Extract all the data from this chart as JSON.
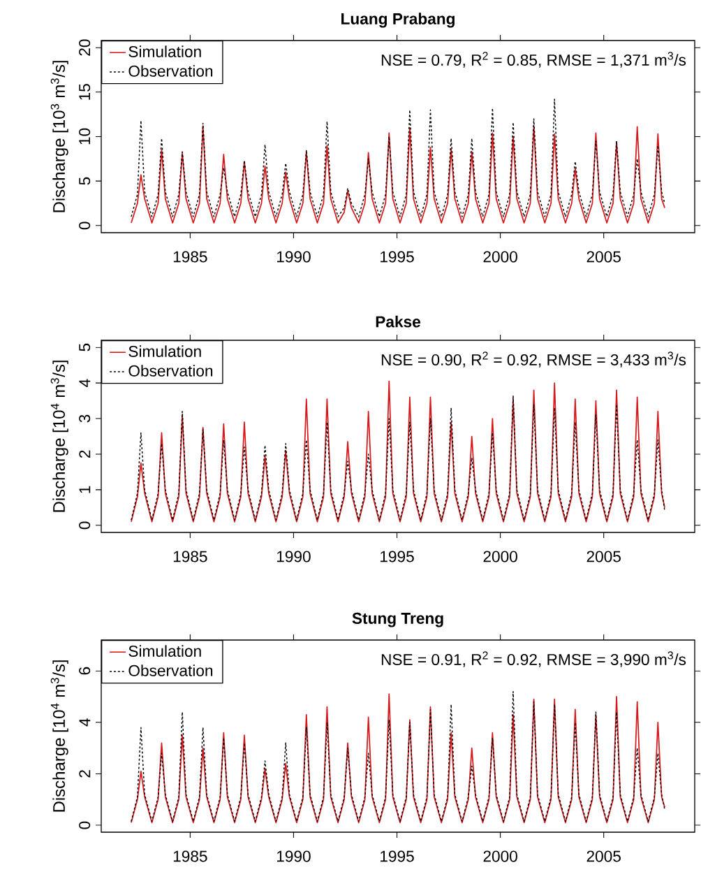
{
  "chart_data": [
    {
      "type": "line",
      "title": "Luang Prabang",
      "ylabel": "Discharge [10$^{3}$ m$^{3}$/s]",
      "annotations": [
        "NSE = 0.79, R$^{2}$ = 0.85, RMSE = 1,371 m$^{3}$/s"
      ],
      "xlim": [
        1980.7,
        2009.4
      ],
      "xticks": [
        1985,
        1990,
        1995,
        2000,
        2005
      ],
      "ylim": [
        -0.8,
        20.8
      ],
      "yticks": [
        0,
        5,
        10,
        15,
        20
      ],
      "grid": false,
      "legend": "top left",
      "x": [
        1982.15,
        1982.45,
        1982.62,
        1982.8,
        1983.15,
        1983.45,
        1983.62,
        1983.8,
        1984.15,
        1984.45,
        1984.62,
        1984.8,
        1985.15,
        1985.45,
        1985.62,
        1985.8,
        1986.15,
        1986.45,
        1986.62,
        1986.8,
        1987.15,
        1987.45,
        1987.62,
        1987.8,
        1988.15,
        1988.45,
        1988.62,
        1988.8,
        1989.15,
        1989.45,
        1989.62,
        1989.8,
        1990.15,
        1990.45,
        1990.62,
        1990.8,
        1991.15,
        1991.45,
        1991.62,
        1991.8,
        1992.15,
        1992.45,
        1992.62,
        1992.8,
        1993.15,
        1993.45,
        1993.62,
        1993.8,
        1994.15,
        1994.45,
        1994.62,
        1994.8,
        1995.15,
        1995.45,
        1995.62,
        1995.8,
        1996.15,
        1996.45,
        1996.62,
        1996.8,
        1997.15,
        1997.45,
        1997.62,
        1997.8,
        1998.15,
        1998.45,
        1998.62,
        1998.8,
        1999.15,
        1999.45,
        1999.62,
        1999.8,
        2000.15,
        2000.45,
        2000.62,
        2000.8,
        2001.15,
        2001.45,
        2001.62,
        2001.8,
        2002.15,
        2002.45,
        2002.62,
        2002.8,
        2003.15,
        2003.45,
        2003.62,
        2003.8,
        2004.15,
        2004.45,
        2004.62,
        2004.8,
        2005.15,
        2005.45,
        2005.62,
        2005.8,
        2006.15,
        2006.45,
        2006.62,
        2006.8,
        2007.15,
        2007.45,
        2007.62,
        2007.8,
        2007.95
      ],
      "series": [
        {
          "name": "Simulation",
          "color": "#d7191c",
          "line_style": "solid",
          "values": [
            0.3,
            2.5,
            5.7,
            3.0,
            0.3,
            2.5,
            8.5,
            3.0,
            0.3,
            2.5,
            8.2,
            3.0,
            0.3,
            2.5,
            11.2,
            3.0,
            0.3,
            2.5,
            8.0,
            3.0,
            0.3,
            2.5,
            7.2,
            3.0,
            0.3,
            2.5,
            6.7,
            3.0,
            0.3,
            2.5,
            6.0,
            3.0,
            0.3,
            2.5,
            8.3,
            3.0,
            0.3,
            2.5,
            9.0,
            3.0,
            0.3,
            1.5,
            3.9,
            2.0,
            0.3,
            2.5,
            8.2,
            3.0,
            0.3,
            2.5,
            10.4,
            3.0,
            0.3,
            2.5,
            11.0,
            3.0,
            0.3,
            2.5,
            8.8,
            3.0,
            0.3,
            2.5,
            8.6,
            3.0,
            0.3,
            2.5,
            8.3,
            3.0,
            0.3,
            2.5,
            10.4,
            3.0,
            0.3,
            2.5,
            10.0,
            3.0,
            0.3,
            2.5,
            11.2,
            3.0,
            0.3,
            2.5,
            10.3,
            3.0,
            0.3,
            2.5,
            6.4,
            3.0,
            0.3,
            2.5,
            10.4,
            3.0,
            0.3,
            2.5,
            9.4,
            3.0,
            0.3,
            2.5,
            11.1,
            3.0,
            0.3,
            2.5,
            10.3,
            3.0,
            2.0
          ]
        },
        {
          "name": "Observation",
          "color": "#000000",
          "line_style": "dotted",
          "values": [
            1.0,
            3.5,
            11.8,
            3.8,
            1.0,
            3.5,
            9.8,
            3.8,
            1.0,
            3.5,
            8.3,
            3.8,
            1.0,
            3.5,
            11.5,
            3.8,
            1.0,
            3.5,
            6.5,
            3.8,
            1.0,
            3.5,
            7.3,
            3.8,
            1.0,
            3.5,
            9.1,
            3.8,
            1.0,
            3.5,
            7.0,
            3.8,
            1.0,
            3.5,
            8.5,
            3.8,
            1.0,
            3.5,
            11.7,
            3.8,
            1.0,
            2.0,
            4.2,
            2.5,
            1.0,
            3.5,
            7.5,
            3.8,
            1.0,
            3.5,
            10.0,
            3.8,
            1.0,
            3.5,
            13.0,
            3.8,
            1.0,
            3.5,
            13.0,
            3.8,
            1.0,
            3.5,
            9.8,
            3.8,
            1.0,
            3.5,
            9.8,
            3.8,
            1.0,
            3.5,
            13.2,
            3.8,
            1.0,
            3.5,
            11.6,
            3.8,
            1.0,
            3.5,
            12.0,
            3.8,
            1.0,
            3.5,
            14.2,
            3.8,
            1.0,
            3.5,
            7.2,
            3.8,
            1.0,
            3.5,
            9.5,
            3.8,
            1.0,
            3.5,
            9.5,
            3.8,
            1.0,
            3.5,
            7.5,
            3.8,
            1.0,
            3.5,
            9.0,
            3.8,
            2.5
          ]
        }
      ]
    },
    {
      "type": "line",
      "title": "Pakse",
      "ylabel": "Discharge [10$^{4}$ m$^{3}$/s]",
      "annotations": [
        "NSE = 0.90, R$^{2}$ = 0.92, RMSE = 3,433 m$^{3}$/s"
      ],
      "xlim": [
        1980.7,
        2009.4
      ],
      "xticks": [
        1985,
        1990,
        1995,
        2000,
        2005
      ],
      "ylim": [
        -0.2,
        5.2
      ],
      "yticks": [
        0,
        1,
        2,
        3,
        4,
        5
      ],
      "grid": false,
      "legend": "top left",
      "x": [
        1982.15,
        1982.45,
        1982.62,
        1982.8,
        1983.15,
        1983.45,
        1983.62,
        1983.8,
        1984.15,
        1984.45,
        1984.62,
        1984.8,
        1985.15,
        1985.45,
        1985.62,
        1985.8,
        1986.15,
        1986.45,
        1986.62,
        1986.8,
        1987.15,
        1987.45,
        1987.62,
        1987.8,
        1988.15,
        1988.45,
        1988.62,
        1988.8,
        1989.15,
        1989.45,
        1989.62,
        1989.8,
        1990.15,
        1990.45,
        1990.62,
        1990.8,
        1991.15,
        1991.45,
        1991.62,
        1991.8,
        1992.15,
        1992.45,
        1992.62,
        1992.8,
        1993.15,
        1993.45,
        1993.62,
        1993.8,
        1994.15,
        1994.45,
        1994.62,
        1994.8,
        1995.15,
        1995.45,
        1995.62,
        1995.8,
        1996.15,
        1996.45,
        1996.62,
        1996.8,
        1997.15,
        1997.45,
        1997.62,
        1997.8,
        1998.15,
        1998.45,
        1998.62,
        1998.8,
        1999.15,
        1999.45,
        1999.62,
        1999.8,
        2000.15,
        2000.45,
        2000.62,
        2000.8,
        2001.15,
        2001.45,
        2001.62,
        2001.8,
        2002.15,
        2002.45,
        2002.62,
        2002.8,
        2003.15,
        2003.45,
        2003.62,
        2003.8,
        2004.15,
        2004.45,
        2004.62,
        2004.8,
        2005.15,
        2005.45,
        2005.62,
        2005.8,
        2006.15,
        2006.45,
        2006.62,
        2006.8,
        2007.15,
        2007.45,
        2007.62,
        2007.8,
        2007.95
      ],
      "series": [
        {
          "name": "Simulation",
          "color": "#d7191c",
          "line_style": "solid",
          "values": [
            0.1,
            0.8,
            1.75,
            0.9,
            0.1,
            0.8,
            2.6,
            0.9,
            0.1,
            0.8,
            3.1,
            0.9,
            0.1,
            0.8,
            2.75,
            0.9,
            0.1,
            0.8,
            2.85,
            0.9,
            0.1,
            0.8,
            2.9,
            0.9,
            0.1,
            0.8,
            1.95,
            0.9,
            0.1,
            0.8,
            2.1,
            0.9,
            0.1,
            0.8,
            3.55,
            0.9,
            0.1,
            0.8,
            3.55,
            0.9,
            0.1,
            0.8,
            2.35,
            0.9,
            0.1,
            0.8,
            3.2,
            0.9,
            0.1,
            0.8,
            4.05,
            0.9,
            0.1,
            0.8,
            3.6,
            0.9,
            0.1,
            0.8,
            3.6,
            0.9,
            0.1,
            0.8,
            2.9,
            0.9,
            0.1,
            0.8,
            2.5,
            0.9,
            0.1,
            0.8,
            3.0,
            0.9,
            0.1,
            0.8,
            3.55,
            0.9,
            0.1,
            0.8,
            3.8,
            0.9,
            0.1,
            0.8,
            4.0,
            0.9,
            0.1,
            0.8,
            3.55,
            0.9,
            0.1,
            0.8,
            3.5,
            0.9,
            0.1,
            0.8,
            3.8,
            0.9,
            0.1,
            0.8,
            3.6,
            0.9,
            0.1,
            0.8,
            3.2,
            0.9,
            0.5
          ]
        },
        {
          "name": "Observation",
          "color": "#000000",
          "line_style": "dotted",
          "values": [
            0.15,
            0.9,
            2.6,
            1.0,
            0.15,
            0.9,
            2.3,
            1.0,
            0.15,
            0.9,
            3.2,
            1.0,
            0.15,
            0.9,
            2.7,
            1.0,
            0.15,
            0.9,
            2.4,
            1.0,
            0.15,
            0.9,
            2.2,
            1.0,
            0.15,
            0.9,
            2.25,
            1.0,
            0.15,
            0.9,
            2.3,
            1.0,
            0.15,
            0.9,
            2.4,
            1.0,
            0.15,
            0.9,
            2.9,
            1.0,
            0.15,
            0.9,
            1.8,
            1.0,
            0.15,
            0.9,
            2.0,
            1.0,
            0.15,
            0.9,
            3.0,
            1.0,
            0.15,
            0.9,
            2.9,
            1.0,
            0.15,
            0.9,
            3.0,
            1.0,
            0.15,
            0.9,
            3.3,
            1.0,
            0.15,
            0.9,
            1.9,
            1.0,
            0.15,
            0.9,
            2.6,
            1.0,
            0.15,
            0.9,
            3.65,
            1.0,
            0.15,
            0.9,
            3.4,
            1.0,
            0.15,
            0.9,
            3.3,
            1.0,
            0.15,
            0.9,
            2.9,
            1.0,
            0.15,
            0.9,
            3.1,
            1.0,
            0.15,
            0.9,
            3.4,
            1.0,
            0.15,
            0.9,
            2.4,
            1.0,
            0.15,
            0.9,
            2.4,
            1.0,
            0.4
          ]
        }
      ]
    },
    {
      "type": "line",
      "title": "Stung Treng",
      "ylabel": "Discharge [10$^{4}$ m$^{3}$/s]",
      "annotations": [
        "NSE = 0.91, R$^{2}$ = 0.92, RMSE = 3,990 m$^{3}$/s"
      ],
      "xlim": [
        1980.7,
        2009.4
      ],
      "xticks": [
        1985,
        1990,
        1995,
        2000,
        2005
      ],
      "ylim": [
        -0.27,
        7.2
      ],
      "yticks": [
        0,
        2,
        4,
        6
      ],
      "grid": false,
      "legend": "top left",
      "x": [
        1982.15,
        1982.45,
        1982.62,
        1982.8,
        1983.15,
        1983.45,
        1983.62,
        1983.8,
        1984.15,
        1984.45,
        1984.62,
        1984.8,
        1985.15,
        1985.45,
        1985.62,
        1985.8,
        1986.15,
        1986.45,
        1986.62,
        1986.8,
        1987.15,
        1987.45,
        1987.62,
        1987.8,
        1988.15,
        1988.45,
        1988.62,
        1988.8,
        1989.15,
        1989.45,
        1989.62,
        1989.8,
        1990.15,
        1990.45,
        1990.62,
        1990.8,
        1991.15,
        1991.45,
        1991.62,
        1991.8,
        1992.15,
        1992.45,
        1992.62,
        1992.8,
        1993.15,
        1993.45,
        1993.62,
        1993.8,
        1994.15,
        1994.45,
        1994.62,
        1994.8,
        1995.15,
        1995.45,
        1995.62,
        1995.8,
        1996.15,
        1996.45,
        1996.62,
        1996.8,
        1997.15,
        1997.45,
        1997.62,
        1997.8,
        1998.15,
        1998.45,
        1998.62,
        1998.8,
        1999.15,
        1999.45,
        1999.62,
        1999.8,
        2000.15,
        2000.45,
        2000.62,
        2000.8,
        2001.15,
        2001.45,
        2001.62,
        2001.8,
        2002.15,
        2002.45,
        2002.62,
        2002.8,
        2003.15,
        2003.45,
        2003.62,
        2003.8,
        2004.15,
        2004.45,
        2004.62,
        2004.8,
        2005.15,
        2005.45,
        2005.62,
        2005.8,
        2006.15,
        2006.45,
        2006.62,
        2006.8,
        2007.15,
        2007.45,
        2007.62,
        2007.8,
        2007.95
      ],
      "series": [
        {
          "name": "Simulation",
          "color": "#d7191c",
          "line_style": "solid",
          "values": [
            0.1,
            1.0,
            2.1,
            1.1,
            0.1,
            1.0,
            3.2,
            1.1,
            0.1,
            1.0,
            3.5,
            1.1,
            0.1,
            1.0,
            3.0,
            1.1,
            0.1,
            1.0,
            3.6,
            1.1,
            0.1,
            1.0,
            3.5,
            1.1,
            0.1,
            1.0,
            2.2,
            1.1,
            0.1,
            1.0,
            2.4,
            1.1,
            0.1,
            1.0,
            4.3,
            1.1,
            0.1,
            1.0,
            4.6,
            1.1,
            0.1,
            1.0,
            3.2,
            1.1,
            0.1,
            1.0,
            4.2,
            1.1,
            0.1,
            1.0,
            5.1,
            1.1,
            0.1,
            1.0,
            4.1,
            1.1,
            0.1,
            1.0,
            4.6,
            1.1,
            0.1,
            1.0,
            3.6,
            1.1,
            0.1,
            1.0,
            3.0,
            1.1,
            0.1,
            1.0,
            3.6,
            1.1,
            0.1,
            1.0,
            4.3,
            1.1,
            0.1,
            1.0,
            4.9,
            1.1,
            0.1,
            1.0,
            4.9,
            1.1,
            0.1,
            1.0,
            4.5,
            1.1,
            0.1,
            1.0,
            4.3,
            1.1,
            0.1,
            1.0,
            5.0,
            1.1,
            0.1,
            1.0,
            4.8,
            1.1,
            0.1,
            1.0,
            4.0,
            1.1,
            0.7
          ]
        },
        {
          "name": "Observation",
          "color": "#000000",
          "line_style": "dotted",
          "values": [
            0.15,
            1.1,
            3.8,
            1.2,
            0.15,
            1.1,
            2.8,
            1.2,
            0.15,
            1.1,
            4.4,
            1.2,
            0.15,
            1.1,
            3.8,
            1.2,
            0.15,
            1.1,
            3.4,
            1.2,
            0.15,
            1.1,
            3.2,
            1.2,
            0.15,
            1.1,
            2.5,
            1.2,
            0.15,
            1.1,
            3.2,
            1.2,
            0.15,
            1.1,
            3.8,
            1.2,
            0.15,
            1.1,
            4.0,
            1.2,
            0.15,
            1.1,
            3.0,
            1.2,
            0.15,
            1.1,
            2.8,
            1.2,
            0.15,
            1.1,
            4.1,
            1.2,
            0.15,
            1.1,
            4.0,
            1.2,
            0.15,
            1.1,
            4.5,
            1.2,
            0.15,
            1.1,
            4.7,
            1.2,
            0.15,
            1.1,
            2.3,
            1.2,
            0.15,
            1.1,
            3.4,
            1.2,
            0.15,
            1.1,
            5.2,
            1.2,
            0.15,
            1.1,
            4.8,
            1.2,
            0.15,
            1.1,
            4.7,
            1.2,
            0.15,
            1.1,
            4.0,
            1.2,
            0.15,
            1.1,
            4.4,
            1.2,
            0.15,
            1.1,
            4.4,
            1.2,
            0.15,
            1.1,
            3.0,
            1.2,
            0.15,
            1.1,
            2.8,
            1.2,
            0.6
          ]
        }
      ]
    }
  ]
}
